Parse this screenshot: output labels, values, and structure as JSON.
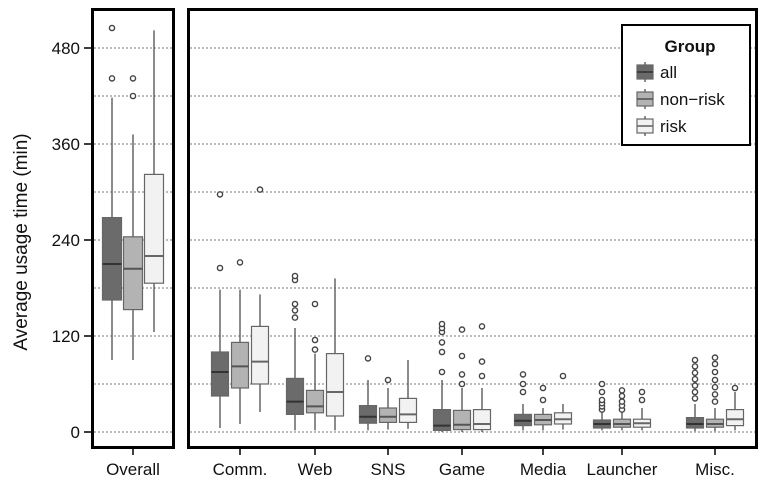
{
  "chart_data": {
    "type": "boxplot",
    "ylabel": "Average usage time (min)",
    "ylim": [
      0,
      500
    ],
    "yticks": [
      0,
      120,
      240,
      360,
      480
    ],
    "grid": "horizontal dotted",
    "legend": {
      "title": "Group",
      "placement": "top-right",
      "entries": [
        "all",
        "non−risk",
        "risk"
      ]
    },
    "colors": {
      "all": "#6b6b6b",
      "non-risk": "#b3b3b3",
      "risk": "#f2f2f2"
    },
    "panels": [
      {
        "categories": [
          "Overall"
        ],
        "series": [
          {
            "name": "all",
            "boxes": [
              {
                "whisker_low": 90,
                "q1": 165,
                "median": 210,
                "q3": 268,
                "whisker_high": 418,
                "outliers": [
                  442,
                  505
                ]
              }
            ]
          },
          {
            "name": "non−risk",
            "boxes": [
              {
                "whisker_low": 90,
                "q1": 153,
                "median": 204,
                "q3": 244,
                "whisker_high": 372,
                "outliers": [
                  420,
                  442
                ]
              }
            ]
          },
          {
            "name": "risk",
            "boxes": [
              {
                "whisker_low": 125,
                "q1": 186,
                "median": 220,
                "q3": 322,
                "whisker_high": 502,
                "outliers": []
              }
            ]
          }
        ]
      },
      {
        "categories": [
          "Comm.",
          "Web",
          "SNS",
          "Game",
          "Media",
          "Launcher",
          "Misc."
        ],
        "series": [
          {
            "name": "all",
            "boxes": [
              {
                "whisker_low": 5,
                "q1": 45,
                "median": 75,
                "q3": 100,
                "whisker_high": 178,
                "outliers": [
                  205,
                  297
                ]
              },
              {
                "whisker_low": 2,
                "q1": 22,
                "median": 38,
                "q3": 67,
                "whisker_high": 130,
                "outliers": [
                  143,
                  152,
                  160,
                  190,
                  195
                ]
              },
              {
                "whisker_low": 2,
                "q1": 11,
                "median": 19,
                "q3": 33,
                "whisker_high": 65,
                "outliers": [
                  92
                ]
              },
              {
                "whisker_low": 0,
                "q1": 2,
                "median": 8,
                "q3": 28,
                "whisker_high": 65,
                "outliers": [
                  75,
                  100,
                  112,
                  125,
                  130,
                  135
                ]
              },
              {
                "whisker_low": 2,
                "q1": 8,
                "median": 14,
                "q3": 22,
                "whisker_high": 35,
                "outliers": [
                  50,
                  60,
                  72
                ]
              },
              {
                "whisker_low": 2,
                "q1": 5,
                "median": 10,
                "q3": 15,
                "whisker_high": 25,
                "outliers": [
                  28,
                  32,
                  36,
                  40,
                  50,
                  60
                ]
              },
              {
                "whisker_low": 1,
                "q1": 5,
                "median": 10,
                "q3": 18,
                "whisker_high": 35,
                "outliers": [
                  42,
                  50,
                  58,
                  66,
                  74,
                  82,
                  90
                ]
              }
            ]
          },
          {
            "name": "non−risk",
            "boxes": [
              {
                "whisker_low": 10,
                "q1": 55,
                "median": 82,
                "q3": 112,
                "whisker_high": 178,
                "outliers": [
                  212
                ]
              },
              {
                "whisker_low": 2,
                "q1": 24,
                "median": 32,
                "q3": 52,
                "whisker_high": 98,
                "outliers": [
                  103,
                  115,
                  160
                ]
              },
              {
                "whisker_low": 3,
                "q1": 12,
                "median": 19,
                "q3": 30,
                "whisker_high": 55,
                "outliers": [
                  65
                ]
              },
              {
                "whisker_low": 0,
                "q1": 3,
                "median": 9,
                "q3": 27,
                "whisker_high": 55,
                "outliers": [
                  60,
                  72,
                  95,
                  128
                ]
              },
              {
                "whisker_low": 2,
                "q1": 9,
                "median": 15,
                "q3": 22,
                "whisker_high": 30,
                "outliers": [
                  40,
                  55
                ]
              },
              {
                "whisker_low": 2,
                "q1": 6,
                "median": 10,
                "q3": 16,
                "whisker_high": 25,
                "outliers": [
                  28,
                  33,
                  38,
                  45,
                  52
                ]
              },
              {
                "whisker_low": 1,
                "q1": 6,
                "median": 10,
                "q3": 16,
                "whisker_high": 30,
                "outliers": [
                  38,
                  47,
                  56,
                  65,
                  75,
                  85,
                  93
                ]
              }
            ]
          },
          {
            "name": "risk",
            "boxes": [
              {
                "whisker_low": 25,
                "q1": 60,
                "median": 88,
                "q3": 132,
                "whisker_high": 172,
                "outliers": [
                  303
                ]
              },
              {
                "whisker_low": 2,
                "q1": 20,
                "median": 50,
                "q3": 98,
                "whisker_high": 192,
                "outliers": []
              },
              {
                "whisker_low": 4,
                "q1": 12,
                "median": 22,
                "q3": 42,
                "whisker_high": 90,
                "outliers": []
              },
              {
                "whisker_low": 0,
                "q1": 3,
                "median": 10,
                "q3": 28,
                "whisker_high": 55,
                "outliers": [
                  70,
                  88,
                  132
                ]
              },
              {
                "whisker_low": 3,
                "q1": 10,
                "median": 16,
                "q3": 24,
                "whisker_high": 35,
                "outliers": [
                  70
                ]
              },
              {
                "whisker_low": 2,
                "q1": 6,
                "median": 11,
                "q3": 16,
                "whisker_high": 30,
                "outliers": [
                  40,
                  50
                ]
              },
              {
                "whisker_low": 2,
                "q1": 8,
                "median": 16,
                "q3": 28,
                "whisker_high": 50,
                "outliers": [
                  55
                ]
              }
            ]
          }
        ]
      }
    ]
  }
}
